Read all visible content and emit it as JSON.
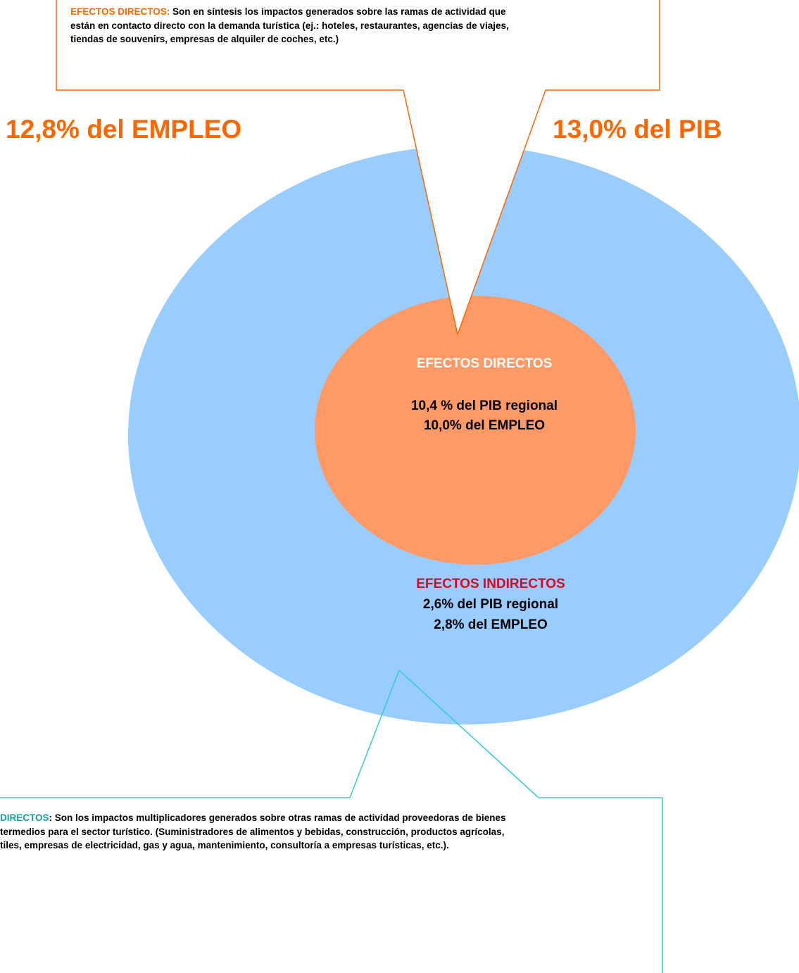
{
  "top_callout": {
    "label": "EFECTOS DIRECTOS:",
    "lines": [
      " Son en síntesis los impactos generados sobre las ramas de actividad que",
      "están en contacto directo con la demanda turística (ej.: hoteles, restaurantes, agencias de viajes,",
      "tiendas de souvenirs, empresas de alquiler de coches, etc.)"
    ]
  },
  "totals": {
    "employment": "12,8% del EMPLEO",
    "gdp": "13,0% del PIB"
  },
  "inner": {
    "title": "EFECTOS DIRECTOS",
    "lines": [
      "10,4 % del PIB regional",
      "10,0% del EMPLEO"
    ]
  },
  "outer": {
    "title": "EFECTOS INDIRECTOS",
    "lines": [
      "2,6% del PIB regional",
      "2,8% del EMPLEO"
    ]
  },
  "bottom_callout": {
    "label": "DIRECTOS",
    "lines": [
      ": Son los impactos multiplicadores generados sobre otras ramas de actividad proveedoras de bienes",
      "termedios para el sector turístico. (Suministradores de alimentos y bebidas, construcción, productos agrícolas,",
      "tiles, empresas de electricidad, gas y agua, mantenimiento, consultoría a empresas turísticas, etc.)."
    ]
  }
}
